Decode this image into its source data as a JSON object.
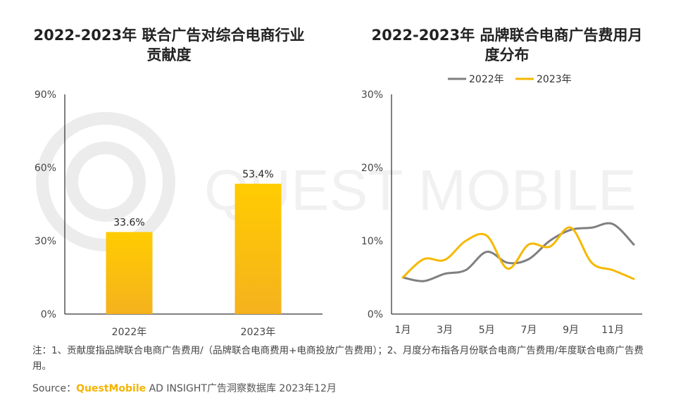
{
  "left_chart": {
    "title_line1": "2022-2023年 联合广告对综合电商行业",
    "title_line2": "贡献度"
  },
  "right_chart": {
    "title_line1": "2022-2023年 品牌联合电商广告费用月",
    "title_line2": "度分布"
  },
  "watermark_text": "QUEST MOBILE",
  "chart_data": [
    {
      "type": "bar",
      "title": "2022-2023年 联合广告对综合电商行业贡献度",
      "categories": [
        "2022年",
        "2023年"
      ],
      "values": [
        33.6,
        53.4
      ],
      "data_labels": [
        "33.6%",
        "53.4%"
      ],
      "ylim": [
        0,
        90
      ],
      "yticks": [
        0,
        30,
        60,
        90
      ],
      "ytick_labels": [
        "0%",
        "30%",
        "60%",
        "90%"
      ],
      "bar_color_top": "#ffcc00",
      "bar_color_bottom": "#f5b21e"
    },
    {
      "type": "line",
      "title": "2022-2023年 品牌联合电商广告费用月度分布",
      "x": [
        1,
        2,
        3,
        4,
        5,
        6,
        7,
        8,
        9,
        10,
        11,
        12
      ],
      "xtick_values": [
        1,
        3,
        5,
        7,
        9,
        11
      ],
      "xtick_labels": [
        "1月",
        "3月",
        "5月",
        "7月",
        "9月",
        "11月"
      ],
      "ylim": [
        0,
        30
      ],
      "yticks": [
        0,
        10,
        20,
        30
      ],
      "ytick_labels": [
        "0%",
        "10%",
        "20%",
        "30%"
      ],
      "legend_position": "top",
      "series": [
        {
          "name": "2022年",
          "color": "#7f7f7f",
          "values": [
            5.0,
            4.5,
            5.5,
            6.0,
            8.5,
            7.0,
            7.5,
            10.0,
            11.5,
            11.8,
            12.3,
            9.5
          ]
        },
        {
          "name": "2023年",
          "color": "#f5b800",
          "values": [
            5.0,
            7.5,
            7.4,
            10.0,
            10.7,
            6.2,
            9.5,
            9.2,
            11.8,
            7.0,
            6.0,
            4.8
          ]
        }
      ]
    }
  ],
  "note": {
    "text": "注：1、贡献度指品牌联合电商广告费用/（品牌联合电商费用+电商投放广告费用）；2、月度分布指各月份联合电商广告费用/年度联合电商广告费用。"
  },
  "source": {
    "prefix": "Source：",
    "brand": "QuestMobile",
    "suffix": " AD INSIGHT广告洞察数据库 2023年12月"
  }
}
